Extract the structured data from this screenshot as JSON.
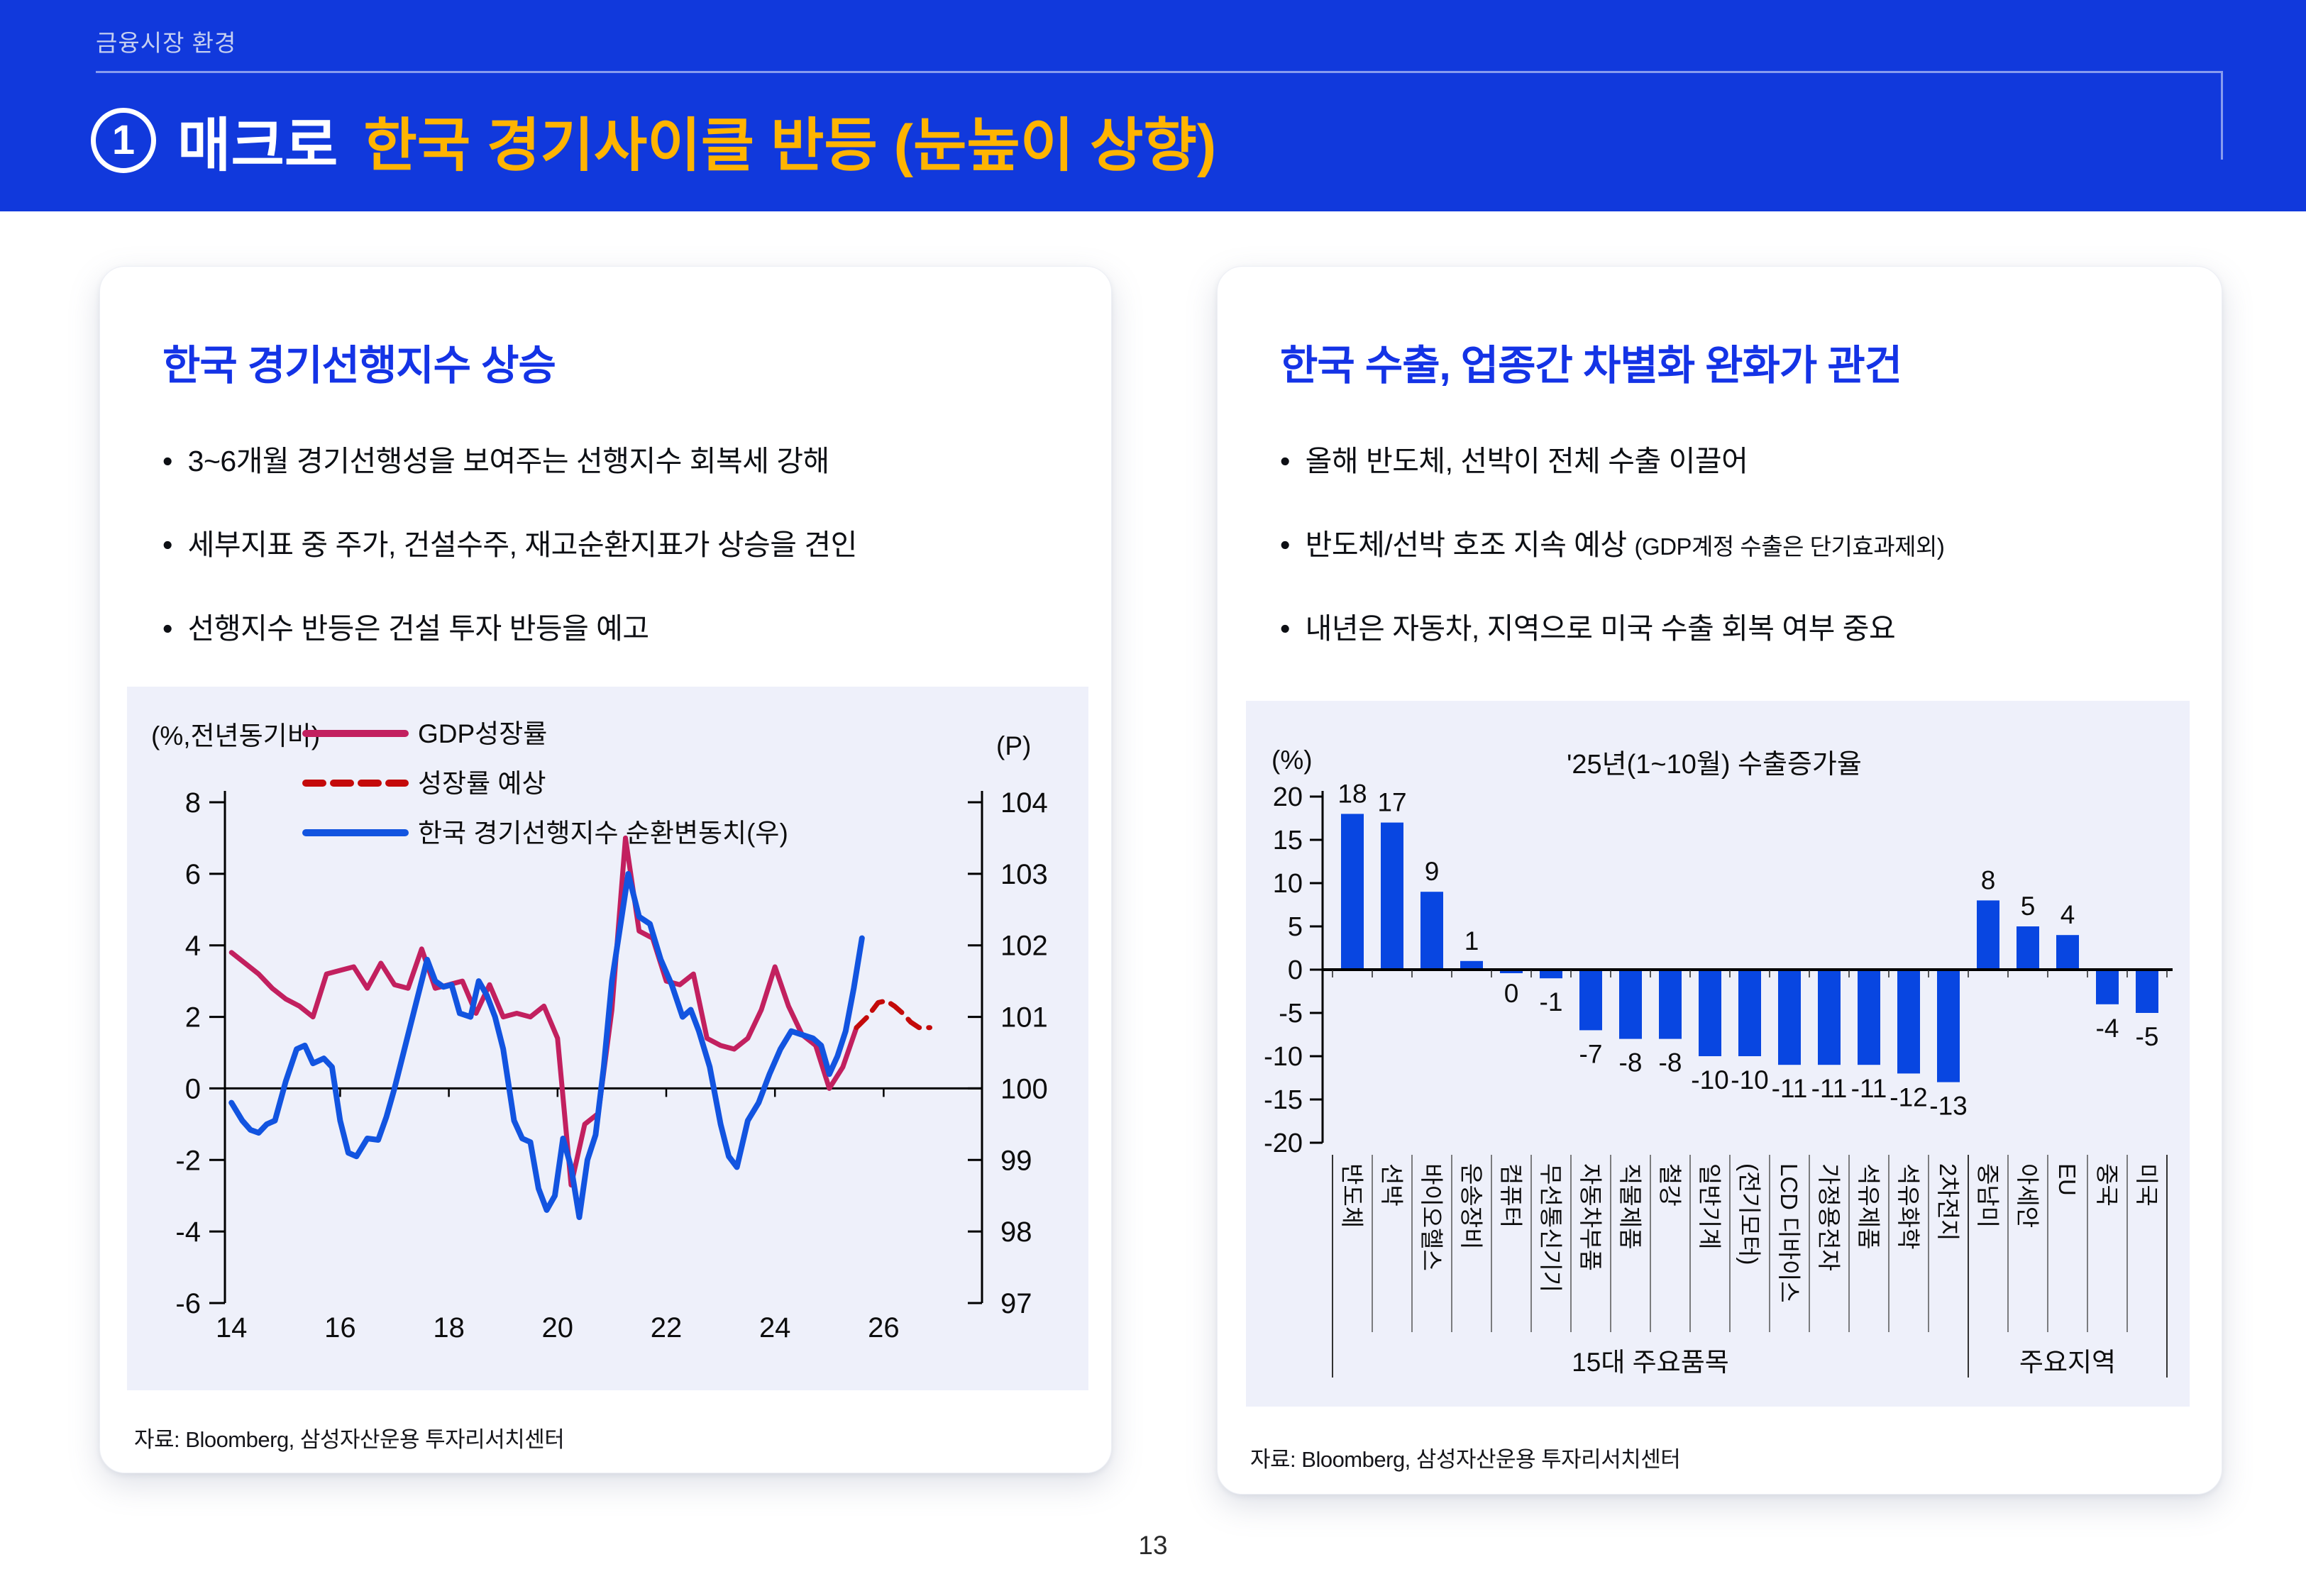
{
  "page": {
    "eyebrow": "금융시장 환경",
    "page_number": "13"
  },
  "header": {
    "badge": "1",
    "title_prefix": "매크로",
    "title_highlight": "한국 경기사이클 반등 (눈높이 상향)",
    "bg_color": "#1139DC",
    "accent_color": "#FFB400"
  },
  "left_card": {
    "title": "한국 경기선행지수 상승",
    "bullets": [
      "3~6개월 경기선행성을 보여주는 선행지수 회복세 강해",
      "세부지표 중 주가, 건설수주, 재고순환지표가 상승을 견인",
      "선행지수 반등은 건설 투자 반등을 예고"
    ],
    "source": "자료: Bloomberg, 삼성자산운용 투자리서치센터"
  },
  "right_card": {
    "title": "한국 수출, 업종간 차별화 완화가 관건",
    "bullets": [
      {
        "text": "올해 반도체, 선박이 전체 수출 이끌어",
        "note": ""
      },
      {
        "text": "반도체/선박 호조 지속 예상",
        "note": "(GDP계정 수출은 단기효과제외)"
      },
      {
        "text": "내년은 자동차, 지역으로 미국 수출 회복 여부 중요",
        "note": ""
      }
    ],
    "source": "자료: Bloomberg, 삼성자산운용 투자리서치센터"
  },
  "chart_data": [
    {
      "type": "line",
      "unit_label_left": "(%,전년동기비)",
      "unit_label_right": "(P)",
      "x_ticks": [
        "14",
        "16",
        "18",
        "20",
        "22",
        "24",
        "26"
      ],
      "x_tick_years": [
        14,
        16,
        18,
        20,
        22,
        24,
        26
      ],
      "left_axis": {
        "min": -6,
        "max": 8,
        "ticks": [
          8,
          6,
          4,
          2,
          0,
          -2,
          -4,
          -6
        ]
      },
      "right_axis": {
        "min": 97,
        "max": 104,
        "ticks": [
          104,
          103,
          102,
          101,
          100,
          99,
          98,
          97
        ]
      },
      "grid": false,
      "legend_position": "top-center",
      "legend": [
        {
          "label": "GDP성장률",
          "color": "#C2205F",
          "style": "solid"
        },
        {
          "label": "성장률 예상",
          "color": "#C40A0A",
          "style": "dashed"
        },
        {
          "label": "한국 경기선행지수 순환변동치(우)",
          "color": "#1254E0",
          "style": "solid"
        }
      ],
      "series": [
        {
          "name": "GDP성장률",
          "axis": "left",
          "color": "#C2205F",
          "style": "solid",
          "points": [
            [
              14.0,
              3.8
            ],
            [
              14.25,
              3.5
            ],
            [
              14.5,
              3.2
            ],
            [
              14.75,
              2.8
            ],
            [
              15.0,
              2.5
            ],
            [
              15.25,
              2.3
            ],
            [
              15.5,
              2.0
            ],
            [
              15.75,
              3.2
            ],
            [
              16.0,
              3.3
            ],
            [
              16.25,
              3.4
            ],
            [
              16.5,
              2.8
            ],
            [
              16.75,
              3.5
            ],
            [
              17.0,
              2.9
            ],
            [
              17.25,
              2.8
            ],
            [
              17.5,
              3.9
            ],
            [
              17.75,
              2.8
            ],
            [
              18.0,
              2.9
            ],
            [
              18.25,
              3.0
            ],
            [
              18.5,
              2.1
            ],
            [
              18.75,
              2.9
            ],
            [
              19.0,
              2.0
            ],
            [
              19.25,
              2.1
            ],
            [
              19.5,
              2.0
            ],
            [
              19.75,
              2.3
            ],
            [
              20.0,
              1.4
            ],
            [
              20.25,
              -2.7
            ],
            [
              20.5,
              -1.0
            ],
            [
              20.75,
              -0.7
            ],
            [
              21.0,
              2.2
            ],
            [
              21.25,
              7.0
            ],
            [
              21.5,
              4.4
            ],
            [
              21.75,
              4.2
            ],
            [
              22.0,
              3.0
            ],
            [
              22.25,
              2.9
            ],
            [
              22.5,
              3.2
            ],
            [
              22.75,
              1.4
            ],
            [
              23.0,
              1.2
            ],
            [
              23.25,
              1.1
            ],
            [
              23.5,
              1.4
            ],
            [
              23.75,
              2.2
            ],
            [
              24.0,
              3.4
            ],
            [
              24.25,
              2.3
            ],
            [
              24.5,
              1.5
            ],
            [
              24.75,
              1.2
            ],
            [
              25.0,
              0.0
            ],
            [
              25.25,
              0.6
            ],
            [
              25.5,
              1.7
            ]
          ]
        },
        {
          "name": "성장률 예상",
          "axis": "left",
          "color": "#C40A0A",
          "style": "dashed",
          "points": [
            [
              25.5,
              1.7
            ],
            [
              25.7,
              2.0
            ],
            [
              25.9,
              2.4
            ],
            [
              26.05,
              2.45
            ],
            [
              26.2,
              2.3
            ],
            [
              26.35,
              2.1
            ],
            [
              26.5,
              1.85
            ],
            [
              26.65,
              1.7
            ],
            [
              26.85,
              1.7
            ]
          ]
        },
        {
          "name": "한국 경기선행지수 순환변동치(우)",
          "axis": "right",
          "color": "#1254E0",
          "style": "solid",
          "points": [
            [
              14.0,
              99.8
            ],
            [
              14.2,
              99.55
            ],
            [
              14.35,
              99.42
            ],
            [
              14.5,
              99.38
            ],
            [
              14.65,
              99.5
            ],
            [
              14.8,
              99.55
            ],
            [
              15.0,
              100.1
            ],
            [
              15.2,
              100.55
            ],
            [
              15.35,
              100.6
            ],
            [
              15.5,
              100.35
            ],
            [
              15.7,
              100.42
            ],
            [
              15.85,
              100.3
            ],
            [
              16.0,
              99.55
            ],
            [
              16.15,
              99.1
            ],
            [
              16.3,
              99.05
            ],
            [
              16.5,
              99.3
            ],
            [
              16.7,
              99.28
            ],
            [
              16.85,
              99.6
            ],
            [
              17.0,
              100.0
            ],
            [
              17.2,
              100.6
            ],
            [
              17.4,
              101.2
            ],
            [
              17.6,
              101.8
            ],
            [
              17.75,
              101.5
            ],
            [
              17.9,
              101.42
            ],
            [
              18.05,
              101.45
            ],
            [
              18.2,
              101.05
            ],
            [
              18.4,
              101.0
            ],
            [
              18.55,
              101.5
            ],
            [
              18.7,
              101.3
            ],
            [
              18.85,
              101.0
            ],
            [
              19.0,
              100.55
            ],
            [
              19.2,
              99.55
            ],
            [
              19.35,
              99.3
            ],
            [
              19.5,
              99.25
            ],
            [
              19.65,
              98.6
            ],
            [
              19.8,
              98.3
            ],
            [
              19.95,
              98.5
            ],
            [
              20.1,
              99.3
            ],
            [
              20.25,
              98.9
            ],
            [
              20.4,
              98.2
            ],
            [
              20.55,
              99.0
            ],
            [
              20.7,
              99.35
            ],
            [
              20.85,
              100.3
            ],
            [
              21.0,
              101.5
            ],
            [
              21.3,
              103.0
            ],
            [
              21.5,
              102.4
            ],
            [
              21.7,
              102.3
            ],
            [
              21.9,
              101.8
            ],
            [
              22.1,
              101.45
            ],
            [
              22.3,
              101.0
            ],
            [
              22.45,
              101.1
            ],
            [
              22.6,
              100.8
            ],
            [
              22.8,
              100.3
            ],
            [
              23.0,
              99.5
            ],
            [
              23.15,
              99.05
            ],
            [
              23.3,
              98.9
            ],
            [
              23.5,
              99.55
            ],
            [
              23.7,
              99.8
            ],
            [
              23.9,
              100.2
            ],
            [
              24.1,
              100.55
            ],
            [
              24.3,
              100.8
            ],
            [
              24.5,
              100.75
            ],
            [
              24.7,
              100.7
            ],
            [
              24.85,
              100.6
            ],
            [
              25.0,
              100.2
            ],
            [
              25.15,
              100.45
            ],
            [
              25.3,
              100.8
            ],
            [
              25.45,
              101.4
            ],
            [
              25.6,
              102.1
            ]
          ]
        }
      ]
    },
    {
      "type": "bar",
      "title": "'25년(1~10월) 수출증가율",
      "unit_label": "(%)",
      "y_axis": {
        "min": -20,
        "max": 20,
        "ticks": [
          20,
          15,
          10,
          5,
          0,
          -5,
          -10,
          -15,
          -20
        ]
      },
      "bar_color": "#0846E1",
      "categories": [
        "반도체",
        "선박",
        "바이오헬스",
        "운송장비",
        "컴퓨터",
        "무선통신기기",
        "자동차부품",
        "직물제품",
        "철강",
        "일반기계",
        "(전기모터)",
        "LCD 디바이스",
        "가정용전자",
        "석유제품",
        "석유화학",
        "2차전지",
        "중남미",
        "아세안",
        "EU",
        "중국",
        "미국"
      ],
      "values": [
        18,
        17,
        9,
        1,
        0,
        -1,
        -7,
        -8,
        -8,
        -10,
        -10,
        -11,
        -11,
        -11,
        -12,
        -13,
        8,
        5,
        4,
        -4,
        -5
      ],
      "groups": [
        {
          "label": "15대 주요품목",
          "from": 0,
          "to": 16
        },
        {
          "label": "주요지역",
          "from": 16,
          "to": 21
        }
      ]
    }
  ]
}
